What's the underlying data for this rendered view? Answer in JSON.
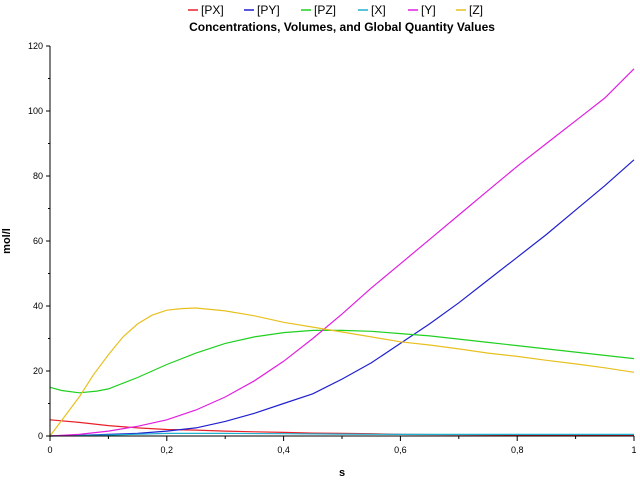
{
  "chart_data": {
    "type": "line",
    "title": "Concentrations, Volumes, and Global Quantity Values",
    "xlabel": "s",
    "ylabel": "mol/l",
    "xlim": [
      0,
      1
    ],
    "ylim": [
      0,
      120
    ],
    "xticks": [
      0,
      0.2,
      0.4,
      0.6,
      0.8,
      1
    ],
    "xtick_labels": [
      "0",
      "0,2",
      "0,4",
      "0,6",
      "0,8",
      "1"
    ],
    "yticks": [
      0,
      20,
      40,
      60,
      80,
      100,
      120
    ],
    "ytick_labels": [
      "0",
      "20",
      "40",
      "60",
      "80",
      "100",
      "120"
    ],
    "grid": false,
    "legend_position": "top",
    "series": [
      {
        "name": "[PX]",
        "color": "#e8202a",
        "x": [
          0,
          0.05,
          0.1,
          0.15,
          0.2,
          0.25,
          0.3,
          0.35,
          0.4,
          0.45,
          0.5,
          0.55,
          0.6,
          0.7,
          0.8,
          0.9,
          1.0
        ],
        "y": [
          5,
          4.2,
          3.2,
          2.5,
          2,
          1.8,
          1.5,
          1.3,
          1.1,
          0.9,
          0.8,
          0.7,
          0.5,
          0.4,
          0.3,
          0.3,
          0.3
        ]
      },
      {
        "name": "[PY]",
        "color": "#2020d0",
        "x": [
          0,
          0.05,
          0.1,
          0.15,
          0.2,
          0.25,
          0.3,
          0.35,
          0.4,
          0.45,
          0.5,
          0.55,
          0.6,
          0.65,
          0.7,
          0.75,
          0.8,
          0.85,
          0.9,
          0.95,
          1.0
        ],
        "y": [
          0,
          0.2,
          0.5,
          0.8,
          1.5,
          2.5,
          4.5,
          7,
          10,
          13,
          17.5,
          22.5,
          28.5,
          34.5,
          41,
          48,
          55,
          62,
          69.5,
          77,
          85
        ]
      },
      {
        "name": "[PZ]",
        "color": "#20d020",
        "x": [
          0,
          0.02,
          0.05,
          0.08,
          0.1,
          0.15,
          0.2,
          0.25,
          0.3,
          0.35,
          0.4,
          0.45,
          0.5,
          0.55,
          0.6,
          0.65,
          0.7,
          0.75,
          0.8,
          0.85,
          0.9,
          0.95,
          1.0
        ],
        "y": [
          15,
          14,
          13.3,
          13.8,
          14.5,
          18,
          22,
          25.5,
          28.5,
          30.5,
          31.8,
          32.5,
          32.5,
          32.2,
          31.5,
          30.8,
          29.8,
          28.8,
          27.8,
          26.8,
          25.8,
          24.8,
          23.8
        ]
      },
      {
        "name": "[X]",
        "color": "#20b0d0",
        "x": [
          0,
          0.1,
          0.2,
          0.3,
          0.4,
          0.5,
          0.6,
          0.7,
          0.8,
          0.9,
          1.0
        ],
        "y": [
          0,
          0.3,
          0.8,
          0.8,
          0.7,
          0.6,
          0.5,
          0.5,
          0.5,
          0.5,
          0.5
        ]
      },
      {
        "name": "[Y]",
        "color": "#e020e0",
        "x": [
          0,
          0.05,
          0.1,
          0.15,
          0.2,
          0.25,
          0.3,
          0.35,
          0.4,
          0.45,
          0.5,
          0.55,
          0.6,
          0.65,
          0.7,
          0.75,
          0.8,
          0.85,
          0.9,
          0.95,
          1.0
        ],
        "y": [
          0,
          0.5,
          1.5,
          3,
          5,
          8,
          12,
          17,
          23,
          30,
          37.5,
          45.5,
          53,
          60.5,
          68,
          75.5,
          83,
          90,
          97,
          104,
          113
        ]
      },
      {
        "name": "[Z]",
        "color": "#e8c020",
        "x": [
          0,
          0.025,
          0.05,
          0.075,
          0.1,
          0.125,
          0.15,
          0.175,
          0.2,
          0.225,
          0.25,
          0.3,
          0.35,
          0.4,
          0.45,
          0.5,
          0.55,
          0.6,
          0.65,
          0.7,
          0.75,
          0.8,
          0.85,
          0.9,
          0.95,
          1.0
        ],
        "y": [
          0,
          6,
          12,
          19,
          25,
          30.5,
          34.5,
          37.2,
          38.7,
          39.2,
          39.4,
          38.5,
          37,
          35,
          33.5,
          32,
          30.5,
          29,
          28,
          26.8,
          25.5,
          24.5,
          23.3,
          22.2,
          21,
          19.6
        ]
      }
    ]
  }
}
